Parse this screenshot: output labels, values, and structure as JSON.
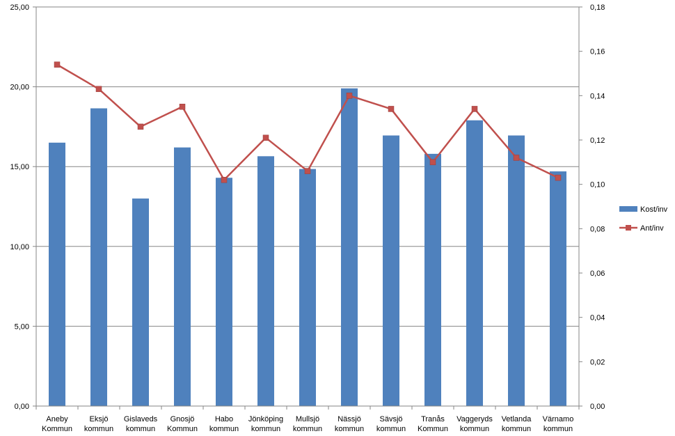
{
  "chart_data": {
    "type": "bar",
    "categories": [
      [
        "Aneby",
        "Kommun"
      ],
      [
        "Eksjö",
        "kommun"
      ],
      [
        "Gislaveds",
        "kommun"
      ],
      [
        "Gnosjö",
        "Kommun"
      ],
      [
        "Habo",
        "kommun"
      ],
      [
        "Jönköping",
        "kommun"
      ],
      [
        "Mullsjö",
        "kommun"
      ],
      [
        "Nässjö",
        "kommun"
      ],
      [
        "Sävsjö",
        "kommun"
      ],
      [
        "Tranås",
        "Kommun"
      ],
      [
        "Vaggeryds",
        "kommun"
      ],
      [
        "Vetlanda",
        "kommun"
      ],
      [
        "Värnamo",
        "kommun"
      ]
    ],
    "series": [
      {
        "name": "Kost/inv",
        "type": "bar",
        "axis": "left",
        "color": "#4F81BD",
        "values": [
          16.5,
          18.65,
          13.0,
          16.2,
          14.3,
          15.65,
          14.85,
          19.9,
          16.95,
          15.8,
          17.9,
          16.95,
          14.7
        ]
      },
      {
        "name": "Ant/inv",
        "type": "line",
        "axis": "right",
        "color": "#C0504D",
        "values": [
          0.154,
          0.143,
          0.126,
          0.135,
          0.102,
          0.121,
          0.106,
          0.14,
          0.134,
          0.11,
          0.134,
          0.112,
          0.103
        ]
      }
    ],
    "y_left": {
      "min": 0,
      "max": 25,
      "step": 5,
      "ticks": [
        "0,00",
        "5,00",
        "10,00",
        "15,00",
        "20,00",
        "25,00"
      ]
    },
    "y_right": {
      "min": 0,
      "max": 0.18,
      "step": 0.02,
      "ticks": [
        "0,00",
        "0,02",
        "0,04",
        "0,06",
        "0,08",
        "0,10",
        "0,12",
        "0,14",
        "0,16",
        "0,18"
      ]
    },
    "grid": true,
    "legend": "right",
    "title": "",
    "xlabel": "",
    "ylabel": ""
  }
}
